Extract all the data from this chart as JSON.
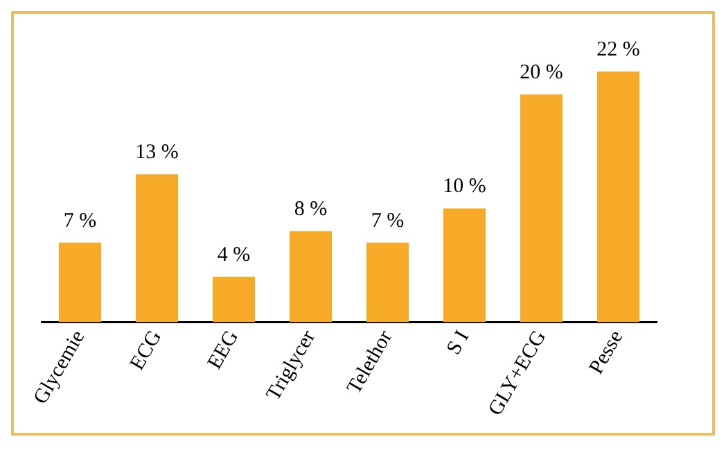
{
  "chart_data": {
    "type": "bar",
    "categories": [
      "Glycemie",
      "ECG",
      "EEG",
      "Triglycer",
      "Telethor",
      "S I",
      "GLY+ECG",
      "Pesse"
    ],
    "values": [
      7,
      13,
      4,
      8,
      7,
      10,
      20,
      22
    ],
    "value_labels": [
      "7 %",
      "13 %",
      "4 %",
      "8 %",
      "7 %",
      "10 %",
      "20 %",
      "22 %"
    ],
    "color": "#f7a928",
    "legend": false,
    "grid": false
  }
}
